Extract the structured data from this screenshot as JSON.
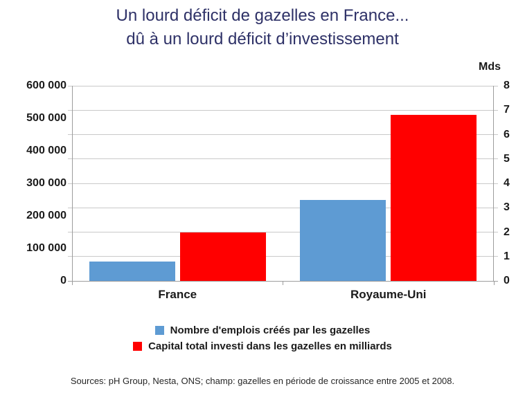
{
  "title": {
    "line1": "Un lourd déficit de gazelles en France...",
    "line2": "dû à un lourd déficit d’investissement"
  },
  "footer": {
    "sources": "Sources: pH Group, Nesta, ONS; champ: gazelles en période de croissance entre 2005 et 2008."
  },
  "chart_data": {
    "type": "bar",
    "categories": [
      "France",
      "Royaume-Uni"
    ],
    "series": [
      {
        "name": "Nombre d'emplois créés par les gazelles",
        "axis": "left",
        "color": "#5E9BD3",
        "values": [
          60000,
          250000
        ]
      },
      {
        "name": "Capital total investi dans les gazelles en milliards",
        "axis": "right",
        "color": "#FF0000",
        "values": [
          2.0,
          6.8
        ]
      }
    ],
    "left_axis": {
      "min": 0,
      "max": 600000,
      "tick_labels": [
        "600 000",
        "500 000",
        "400 000",
        "300 000",
        "200 000",
        "100 000",
        "0"
      ]
    },
    "right_axis": {
      "min": 0,
      "max": 8,
      "unit_label": "Mds",
      "tick_labels": [
        "8",
        "7",
        "6",
        "5",
        "4",
        "3",
        "2",
        "1",
        "0"
      ]
    },
    "gridline_intervals": 8,
    "legend_position": "bottom",
    "grid": true,
    "colors": {
      "title": "#2E3167",
      "gridline": "#C9C9C9",
      "axis": "#9C9C9C",
      "text": "#1A1A1A"
    }
  }
}
